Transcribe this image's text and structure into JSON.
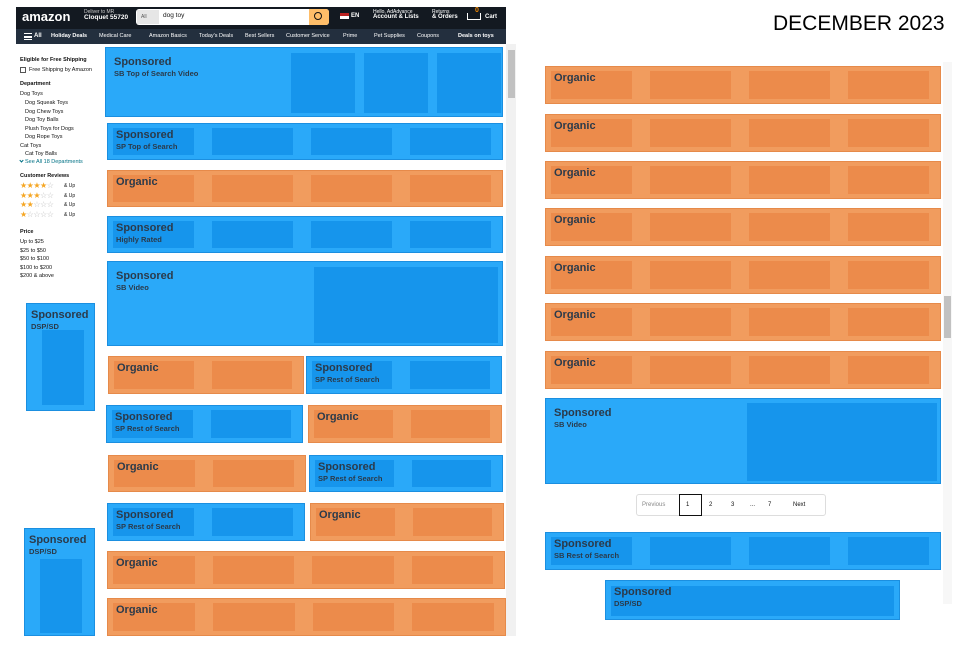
{
  "title": "DECEMBER 2023",
  "header": {
    "logo": "amazon",
    "deliver_line1": "Deliver to MR",
    "deliver_line2": "Cloquet 55720",
    "search_category": "All",
    "search_query": "dog toy",
    "language": "EN",
    "account_line1": "Hello, AdAdvance",
    "account_line2": "Account & Lists",
    "orders_line1": "Returns",
    "orders_line2": "& Orders",
    "cart_count": "0",
    "cart_label": "Cart"
  },
  "nav": {
    "menu": "All",
    "items": [
      "Holiday Deals",
      "Medical Care",
      "Amazon Basics",
      "Today's Deals",
      "Best Sellers",
      "Customer Service",
      "Prime",
      "Pet Supplies",
      "Coupons"
    ],
    "promo": "Deals on toys"
  },
  "sidebar": {
    "shipping_heading": "Eligible for Free Shipping",
    "shipping_option": "Free Shipping by Amazon",
    "department_heading": "Department",
    "departments": [
      "Dog Toys",
      "Dog Squeak Toys",
      "Dog Chew Toys",
      "Dog Toy Balls",
      "Plush Toys for Dogs",
      "Dog Rope Toys",
      "Cat Toys",
      "Cat Toy Balls"
    ],
    "see_all": "See All 18 Departments",
    "reviews_heading": "Customer Reviews",
    "reviews": [
      "& Up",
      "& Up",
      "& Up",
      "& Up"
    ],
    "price_heading": "Price",
    "prices": [
      "Up to $25",
      "$25 to $50",
      "$50 to $100",
      "$100 to $200",
      "$200 & above"
    ]
  },
  "blocks": [
    {
      "label": "Sponsored",
      "sublabel": "SB Top of Search Video"
    },
    {
      "label": "Sponsored",
      "sublabel": "SP Top of Search"
    },
    {
      "label": "Organic"
    },
    {
      "label": "Sponsored",
      "sublabel": "Highly Rated"
    },
    {
      "label": "Sponsored",
      "sublabel": "SB Video"
    },
    {
      "label": "Sponsored",
      "sublabel": "DSP/SD"
    },
    {
      "label": "Organic"
    },
    {
      "label": "Sponsored",
      "sublabel": "SP Rest of Search"
    },
    {
      "label": "Sponsored",
      "sublabel": "SP Rest of Search"
    },
    {
      "label": "Organic"
    },
    {
      "label": "Organic"
    },
    {
      "label": "Sponsored",
      "sublabel": "SP Rest of Search"
    },
    {
      "label": "Sponsored",
      "sublabel": "SP Rest of Search"
    },
    {
      "label": "Organic"
    },
    {
      "label": "Organic"
    },
    {
      "label": "Sponsored",
      "sublabel": "DSP/SD"
    },
    {
      "label": "Organic"
    },
    {
      "label": "Organic"
    },
    {
      "label": "Organic"
    },
    {
      "label": "Organic"
    },
    {
      "label": "Organic"
    },
    {
      "label": "Organic"
    },
    {
      "label": "Organic"
    },
    {
      "label": "Organic"
    },
    {
      "label": "Sponsored",
      "sublabel": "SB Video"
    },
    {
      "label": "Sponsored",
      "sublabel": "SB Rest of Search"
    },
    {
      "label": "Sponsored",
      "sublabel": "DSP/SD"
    }
  ],
  "pagination": {
    "previous": "Previous",
    "pages": [
      "1",
      "2",
      "3",
      "...",
      "7"
    ],
    "next": "Next"
  }
}
